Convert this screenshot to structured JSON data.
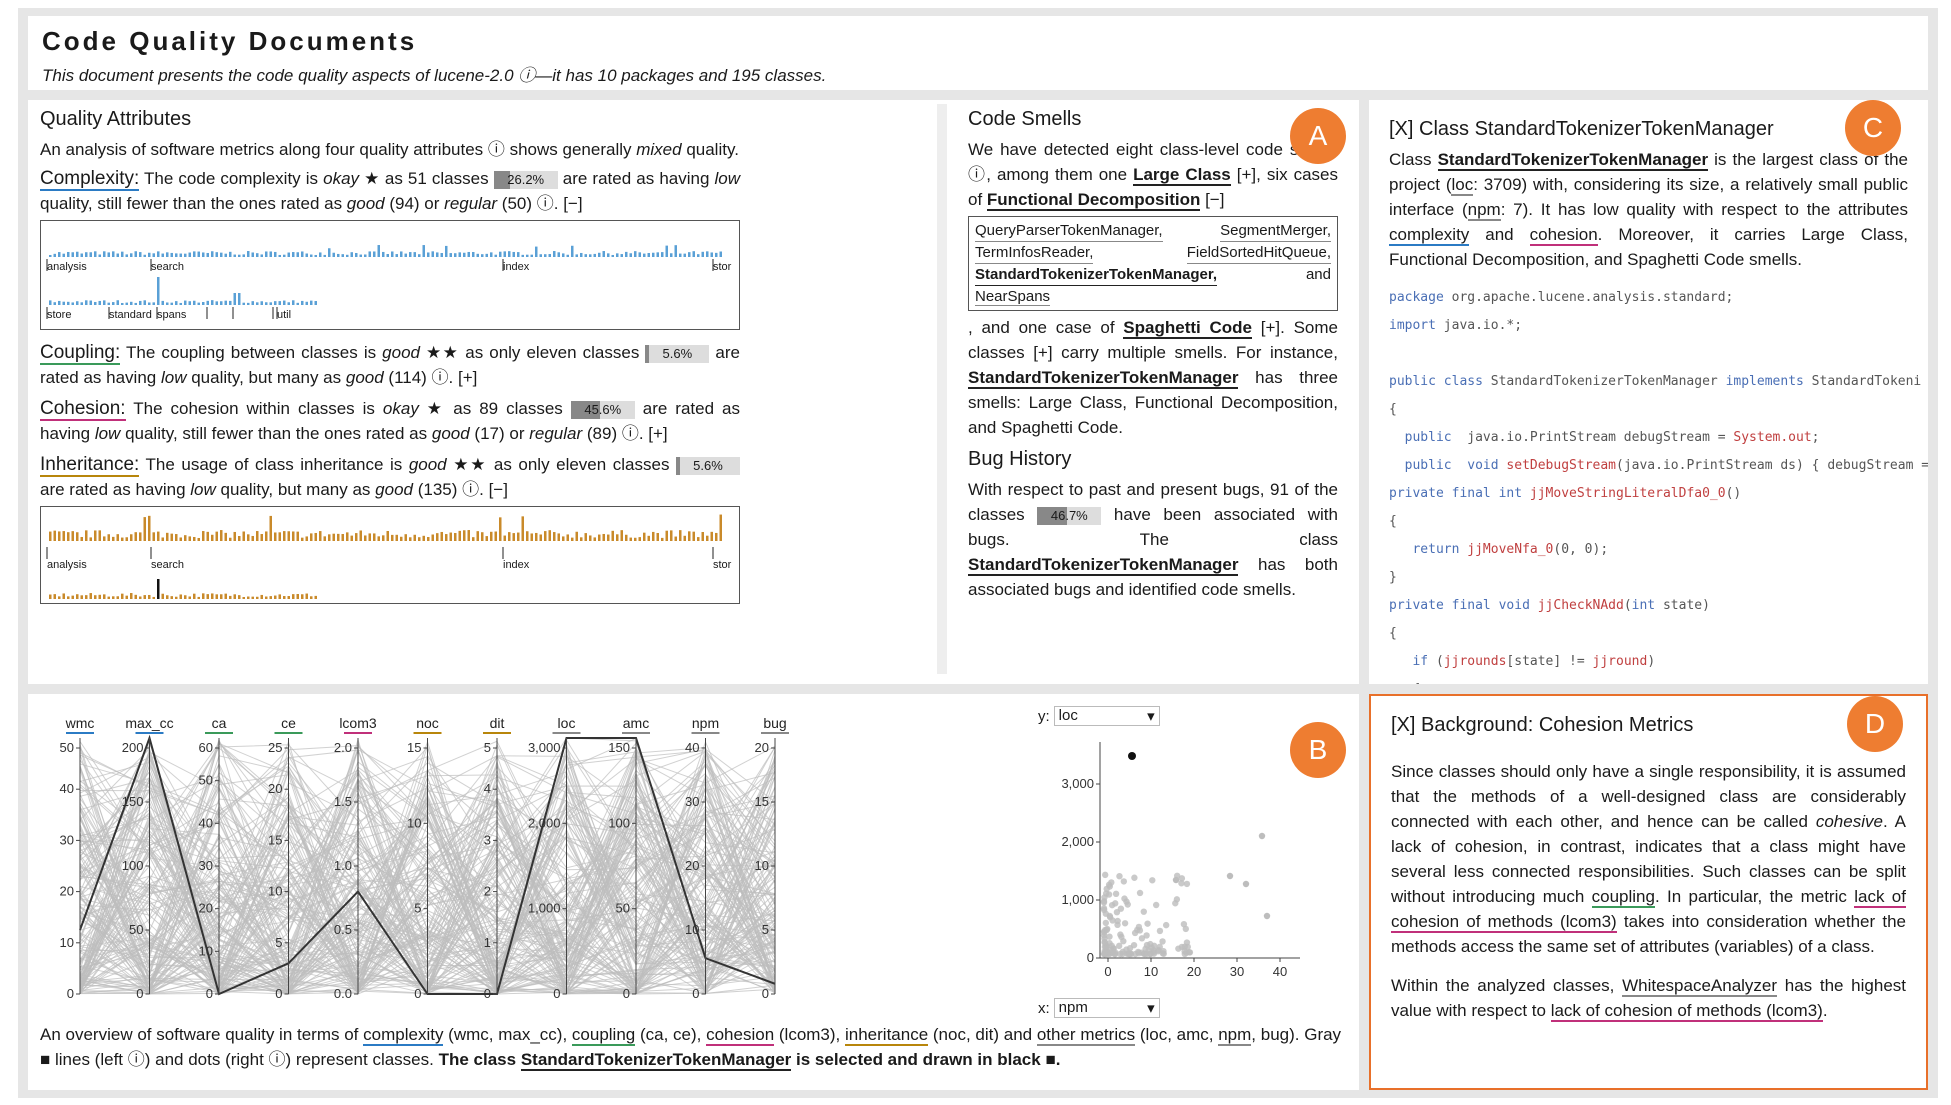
{
  "header": {
    "title": "Code Quality Documents",
    "subtitle": "This document presents the code quality aspects of lucene-2.0 ⓘ—it has 10 packages and 195 classes."
  },
  "quality": {
    "title": "Quality Attributes",
    "intro_pre": "An analysis of software metrics along four quality attributes ⓘ shows generally ",
    "intro_em": "mixed",
    "intro_post": " quality.",
    "complexity": {
      "label": "Complexity:",
      "t1": " The code complexity is ",
      "rating": "okay",
      "stars": " ★ ",
      "t2": "as 51 classes ",
      "pct": "26.2%",
      "pct_val": 26.2,
      "t3": " are rated as having ",
      "low": "low",
      "t4": " quality, still fewer than the ones rated as ",
      "good": "good",
      "t5": " (94) or ",
      "regular": "regular",
      "t6": " (50) ⓘ. [−]"
    },
    "coupling": {
      "label": "Coupling:",
      "t1": " The coupling between classes is ",
      "rating": "good",
      "stars": " ★★ ",
      "t2": "as only eleven classes ",
      "pct": "5.6%",
      "pct_val": 5.6,
      "t3": " are rated as having ",
      "low": "low",
      "t4": " quality, but many as ",
      "good": "good",
      "t5": " (114) ⓘ. [+]"
    },
    "cohesion": {
      "label": "Cohesion:",
      "t1": " The cohesion within classes is ",
      "rating": "okay",
      "stars": " ★ ",
      "t2": "as 89 classes ",
      "pct": "45.6%",
      "pct_val": 45.6,
      "t3": " are rated as having ",
      "low": "low",
      "t4": " quality, still fewer than the ones rated as ",
      "good": "good",
      "t5": " (17) or ",
      "regular": "regular",
      "t6": " (89) ⓘ. [+]"
    },
    "inheritance": {
      "label": "Inheritance:",
      "t1": " The usage of class inheritance is ",
      "rating": "good",
      "stars": " ★★ ",
      "t2": "as only eleven classes ",
      "pct": "5.6%",
      "pct_val": 5.6,
      "t3": " are rated as having ",
      "low": "low",
      "t4": " quality, but many as ",
      "good": "good",
      "t5": " (135) ⓘ. [−]"
    },
    "pkg_row1": [
      "analysis",
      "search",
      "index",
      "stor"
    ],
    "pkg_row2": [
      "store",
      "standard",
      "spans",
      "util"
    ]
  },
  "smells": {
    "title": "Code Smells",
    "p1": "We have detected eight class-level code smells ⓘ, among them one ",
    "large_class": "Large Class",
    "p2": " [+], six cases of ",
    "func_decomp": "Functional Decomposition",
    "p3": " [−]",
    "list": [
      "QueryParserTokenManager,",
      "SegmentMerger,",
      "TermInfosReader,",
      "FieldSortedHitQueue,",
      "StandardTokenizerTokenManager,",
      "and",
      "NearSpans"
    ],
    "p4": ", and one case of ",
    "spaghetti": "Spaghetti Code",
    "p5": " [+]. Some classes [+] carry multiple smells. For instance, ",
    "cls": "StandardTokenizerTokenManager",
    "p6": " has three smells: Large Class, Functional Decomposition, and Spaghetti Code."
  },
  "bugs": {
    "title": "Bug History",
    "p1": "With respect to past and present bugs, 91 of the classes ",
    "pct": "46.7%",
    "pct_val": 46.7,
    "p2": " have been associated with bugs. The class ",
    "cls": "StandardTokenizerTokenManager",
    "p3": " has both associated bugs and identified code smells."
  },
  "classPanel": {
    "title": "[X] Class StandardTokenizerTokenManager",
    "t1": "Class ",
    "cls": "StandardTokenizerTokenManager",
    "t2": " is the largest class of the project (",
    "loc": "loc",
    "t3": ": 3709) with, considering its size, a relatively small public interface (",
    "npm": "npm",
    "t4": ": 7). It has low quality with respect to the attributes ",
    "complexity": "complexity",
    "t5": " and ",
    "cohesion": "cohesion",
    "t6": ". Moreover, it carries Large Class, Functional Decomposition, and Spaghetti Code smells.",
    "code": [
      "package org.apache.lucene.analysis.standard;",
      "import java.io.*;",
      "",
      "public class StandardTokenizerTokenManager implements StandardTokeni",
      "{",
      "  public  java.io.PrintStream debugStream = System.out;",
      "  public  void setDebugStream(java.io.PrintStream ds) { debugStream =",
      "private final int jjMoveStringLiteralDfa0_0()",
      "{",
      "   return jjMoveNfa_0(0, 0);",
      "}",
      "private final void jjCheckNAdd(int state)",
      "{",
      "   if (jjrounds[state] != jjround)",
      "   {"
    ]
  },
  "background": {
    "title": "[X] Background: Cohesion Metrics",
    "p1a": "Since classes should only have a single responsibility, it is assumed that the methods of a well-designed class are considerably connected with each other, and hence can be called ",
    "p1em": "cohesive",
    "p1b": ". A lack of cohesion, in contrast, indicates that a class might have several less connected responsibilities. Such classes can be split without introducing much ",
    "coupling": "coupling",
    "p1c": ". In particular, the metric ",
    "lcom": "lack of cohesion of methods (lcom3)",
    "p1d": " takes into consideration whether the methods access the same set of attributes (variables) of a class.",
    "p2a": "Within the analyzed classes, ",
    "wsa": "WhitespaceAnalyzer",
    "p2b": " has the highest value with respect to ",
    "lcom2": "lack of cohesion of methods (lcom3)",
    "p2c": "."
  },
  "badges": [
    "A",
    "B",
    "C",
    "D"
  ],
  "parallel": {
    "axes": [
      {
        "name": "wmc",
        "color": "#2b7bc4",
        "ticks": [
          "50",
          "40",
          "30",
          "20",
          "10",
          "0"
        ]
      },
      {
        "name": "max_cc",
        "color": "#2b7bc4",
        "ticks": [
          "200",
          "150",
          "100",
          "50",
          "0"
        ]
      },
      {
        "name": "ca",
        "color": "#3a9a5a",
        "ticks": [
          "60",
          "50",
          "40",
          "30",
          "20",
          "10",
          "0"
        ]
      },
      {
        "name": "ce",
        "color": "#3a9a5a",
        "ticks": [
          "25",
          "20",
          "15",
          "10",
          "5",
          "0"
        ]
      },
      {
        "name": "lcom3",
        "color": "#c0307a",
        "ticks": [
          "2.0",
          "1.5",
          "1.0",
          "0.5",
          "0.0"
        ]
      },
      {
        "name": "noc",
        "color": "#b8860b",
        "ticks": [
          "15",
          "10",
          "5",
          "0"
        ]
      },
      {
        "name": "dit",
        "color": "#b8860b",
        "ticks": [
          "5",
          "4",
          "3",
          "2",
          "1",
          "0"
        ]
      },
      {
        "name": "loc",
        "color": "#888888",
        "ticks": [
          "3,000",
          "2,000",
          "1,000",
          "0"
        ]
      },
      {
        "name": "amc",
        "color": "#888888",
        "ticks": [
          "150",
          "100",
          "50",
          "0"
        ]
      },
      {
        "name": "npm",
        "color": "#888888",
        "ticks": [
          "40",
          "30",
          "20",
          "10",
          "0"
        ]
      },
      {
        "name": "bug",
        "color": "#888888",
        "ticks": [
          "20",
          "15",
          "10",
          "5",
          "0"
        ]
      }
    ],
    "caption_pre": "An overview of software quality in terms of ",
    "complexity": "complexity",
    "c1": " (wmc, max_cc), ",
    "coupling": "coupling",
    "c2": " (ca, ce), ",
    "cohesion": "cohesion",
    "c3": " (lcom3), ",
    "inheritance": "inheritance",
    "c4": " (noc, dit) and ",
    "other": "other metrics",
    "c5": " (loc, amc, ",
    "npm": "npm",
    "c6": ", bug). Gray ■ lines (left ⓘ) and dots (right ⓘ) represent classes. ",
    "bold": "The class ",
    "cls": "StandardTokenizerTokenManager",
    "bold2": " is selected and drawn in black ■."
  },
  "scatter": {
    "y_label": "y:",
    "y_value": "loc",
    "x_label": "x:",
    "x_value": "npm",
    "y_ticks": [
      "3,000",
      "2,000",
      "1,000",
      "0"
    ],
    "x_ticks": [
      "0",
      "10",
      "20",
      "30",
      "40"
    ]
  }
}
